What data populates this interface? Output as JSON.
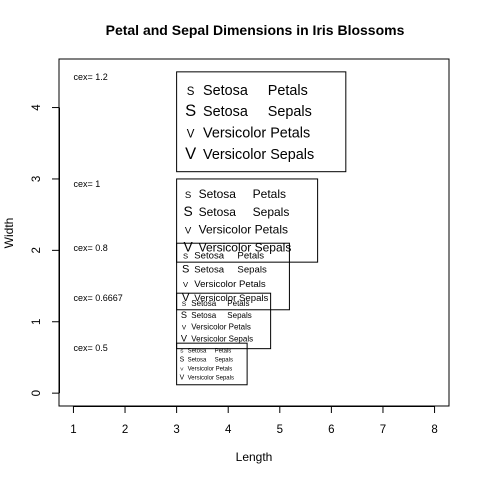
{
  "chart_data": {
    "type": "scatter",
    "title": "Petal and Sepal Dimensions in Iris Blossoms",
    "xlabel": "Length",
    "ylabel": "Width",
    "xlim": [
      0.72,
      8.28
    ],
    "ylim": [
      -0.18,
      4.68
    ],
    "x_ticks": [
      1,
      2,
      3,
      4,
      5,
      6,
      7,
      8
    ],
    "y_ticks": [
      0,
      1,
      2,
      3,
      4
    ],
    "grid": false,
    "legends": [
      {
        "cex_label": "cex= 1.2",
        "cex": 1.2,
        "label_x": 1,
        "top_y": 4.5,
        "entries": [
          {
            "symbol": "S",
            "color": "#000000",
            "text": "Setosa     Petals"
          },
          {
            "symbol": "S",
            "color": "#00cc00",
            "text": "Setosa     Sepals"
          },
          {
            "symbol": "V",
            "color": "#000000",
            "text": "Versicolor Petals"
          },
          {
            "symbol": "V",
            "color": "#00cc00",
            "text": "Versicolor Sepals"
          }
        ]
      },
      {
        "cex_label": "cex= 1",
        "cex": 1.0,
        "label_x": 1,
        "top_y": 3.0,
        "entries": [
          {
            "symbol": "S",
            "color": "#000000",
            "text": "Setosa     Petals"
          },
          {
            "symbol": "S",
            "color": "#00cc00",
            "text": "Setosa     Sepals"
          },
          {
            "symbol": "V",
            "color": "#000000",
            "text": "Versicolor Petals"
          },
          {
            "symbol": "V",
            "color": "#00cc00",
            "text": "Versicolor Sepals"
          }
        ]
      },
      {
        "cex_label": "cex= 0.8",
        "cex": 0.8,
        "label_x": 1,
        "top_y": 2.1,
        "entries": [
          {
            "symbol": "S",
            "color": "#000000",
            "text": "Setosa     Petals"
          },
          {
            "symbol": "S",
            "color": "#00cc00",
            "text": "Setosa     Sepals"
          },
          {
            "symbol": "V",
            "color": "#000000",
            "text": "Versicolor Petals"
          },
          {
            "symbol": "V",
            "color": "#00cc00",
            "text": "Versicolor Sepals"
          }
        ]
      },
      {
        "cex_label": "cex= 0.6667",
        "cex": 0.6667,
        "label_x": 1,
        "top_y": 1.4,
        "entries": [
          {
            "symbol": "S",
            "color": "#000000",
            "text": "Setosa     Petals"
          },
          {
            "symbol": "S",
            "color": "#00cc00",
            "text": "Setosa     Sepals"
          },
          {
            "symbol": "V",
            "color": "#000000",
            "text": "Versicolor Petals"
          },
          {
            "symbol": "V",
            "color": "#00cc00",
            "text": "Versicolor Sepals"
          }
        ]
      },
      {
        "cex_label": "cex= 0.5",
        "cex": 0.5,
        "label_x": 1,
        "top_y": 0.7,
        "entries": [
          {
            "symbol": "S",
            "color": "#000000",
            "text": "Setosa     Petals"
          },
          {
            "symbol": "S",
            "color": "#00cc00",
            "text": "Setosa     Sepals"
          },
          {
            "symbol": "V",
            "color": "#000000",
            "text": "Versicolor Petals"
          },
          {
            "symbol": "V",
            "color": "#00cc00",
            "text": "Versicolor Sepals"
          }
        ]
      }
    ]
  }
}
